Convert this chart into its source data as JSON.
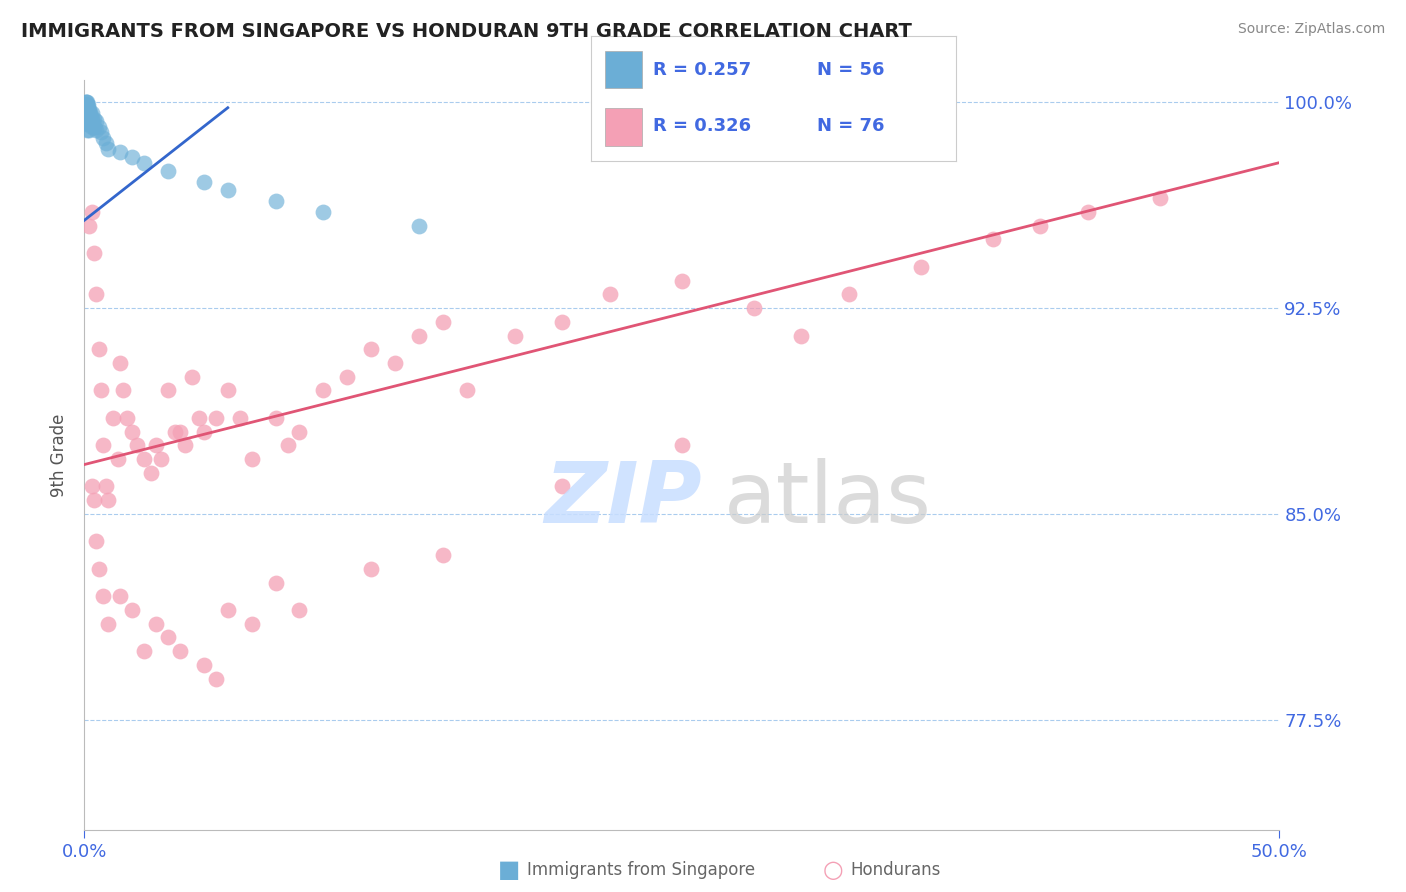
{
  "title": "IMMIGRANTS FROM SINGAPORE VS HONDURAN 9TH GRADE CORRELATION CHART",
  "source_text": "Source: ZipAtlas.com",
  "ylabel": "9th Grade",
  "xlim": [
    0.0,
    0.5
  ],
  "ylim": [
    0.735,
    1.008
  ],
  "yticks": [
    0.775,
    0.85,
    0.925,
    1.0
  ],
  "ytick_labels": [
    "77.5%",
    "85.0%",
    "92.5%",
    "100.0%"
  ],
  "xticks": [
    0.0,
    0.5
  ],
  "xtick_labels": [
    "0.0%",
    "50.0%"
  ],
  "color_singapore": "#6BAED6",
  "color_singapore_line": "#3366CC",
  "color_hondurans": "#F4A0B5",
  "color_hondurans_line": "#E05575",
  "color_blue_text": "#4169E1",
  "color_axis": "#4169E1",
  "color_ylabel": "#555555",
  "sg_line_x": [
    0.0,
    0.06
  ],
  "sg_line_y": [
    0.957,
    0.998
  ],
  "hn_line_x": [
    0.0,
    0.5
  ],
  "hn_line_y": [
    0.868,
    0.978
  ],
  "singapore_x": [
    0.001,
    0.001,
    0.001,
    0.001,
    0.001,
    0.001,
    0.001,
    0.001,
    0.001,
    0.0015,
    0.0015,
    0.0015,
    0.0015,
    0.0015,
    0.002,
    0.002,
    0.002,
    0.002,
    0.002,
    0.0025,
    0.0025,
    0.003,
    0.003,
    0.003,
    0.004,
    0.004,
    0.005,
    0.005,
    0.006,
    0.007,
    0.008,
    0.009,
    0.01,
    0.0005,
    0.0005,
    0.0005,
    0.0005,
    0.0005,
    0.0005,
    0.001,
    0.001,
    0.001,
    0.001,
    0.002,
    0.002,
    0.003,
    0.004,
    0.015,
    0.02,
    0.025,
    0.035,
    0.05,
    0.06,
    0.08,
    0.1,
    0.14
  ],
  "singapore_y": [
    1.0,
    0.999,
    0.998,
    0.997,
    0.996,
    0.995,
    0.993,
    0.992,
    0.99,
    0.999,
    0.998,
    0.997,
    0.995,
    0.993,
    0.997,
    0.996,
    0.994,
    0.992,
    0.99,
    0.996,
    0.993,
    0.996,
    0.994,
    0.991,
    0.994,
    0.991,
    0.993,
    0.99,
    0.991,
    0.989,
    0.987,
    0.985,
    0.983,
    1.0,
    1.0,
    0.999,
    0.999,
    0.998,
    0.998,
    0.999,
    0.998,
    0.997,
    0.996,
    0.996,
    0.994,
    0.993,
    0.991,
    0.982,
    0.98,
    0.978,
    0.975,
    0.971,
    0.968,
    0.964,
    0.96,
    0.955
  ],
  "hondurans_x": [
    0.002,
    0.003,
    0.004,
    0.005,
    0.006,
    0.007,
    0.008,
    0.009,
    0.01,
    0.012,
    0.014,
    0.015,
    0.016,
    0.018,
    0.02,
    0.022,
    0.025,
    0.028,
    0.03,
    0.032,
    0.035,
    0.038,
    0.04,
    0.042,
    0.045,
    0.048,
    0.05,
    0.055,
    0.06,
    0.065,
    0.07,
    0.08,
    0.085,
    0.09,
    0.1,
    0.11,
    0.12,
    0.13,
    0.14,
    0.15,
    0.16,
    0.18,
    0.2,
    0.22,
    0.25,
    0.28,
    0.3,
    0.32,
    0.35,
    0.38,
    0.4,
    0.42,
    0.45,
    0.003,
    0.004,
    0.005,
    0.006,
    0.008,
    0.01,
    0.015,
    0.02,
    0.025,
    0.03,
    0.035,
    0.04,
    0.05,
    0.055,
    0.06,
    0.07,
    0.08,
    0.09,
    0.12,
    0.15,
    0.2,
    0.25
  ],
  "hondurans_y": [
    0.955,
    0.96,
    0.945,
    0.93,
    0.91,
    0.895,
    0.875,
    0.86,
    0.855,
    0.885,
    0.87,
    0.905,
    0.895,
    0.885,
    0.88,
    0.875,
    0.87,
    0.865,
    0.875,
    0.87,
    0.895,
    0.88,
    0.88,
    0.875,
    0.9,
    0.885,
    0.88,
    0.885,
    0.895,
    0.885,
    0.87,
    0.885,
    0.875,
    0.88,
    0.895,
    0.9,
    0.91,
    0.905,
    0.915,
    0.92,
    0.895,
    0.915,
    0.92,
    0.93,
    0.935,
    0.925,
    0.915,
    0.93,
    0.94,
    0.95,
    0.955,
    0.96,
    0.965,
    0.86,
    0.855,
    0.84,
    0.83,
    0.82,
    0.81,
    0.82,
    0.815,
    0.8,
    0.81,
    0.805,
    0.8,
    0.795,
    0.79,
    0.815,
    0.81,
    0.825,
    0.815,
    0.83,
    0.835,
    0.86,
    0.875
  ]
}
